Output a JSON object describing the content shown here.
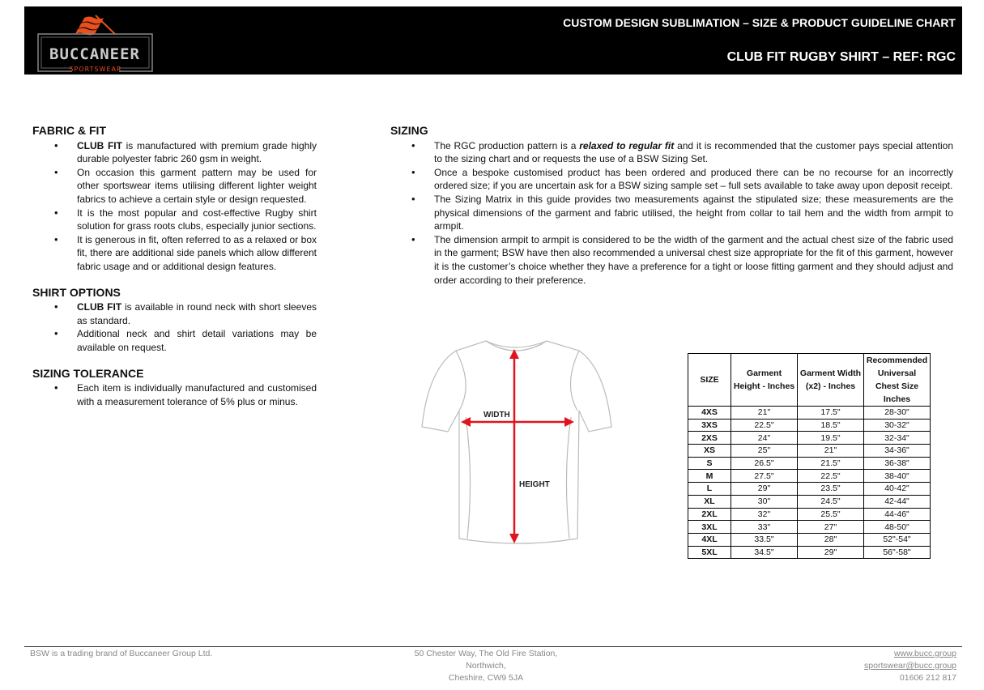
{
  "header": {
    "brand": "BUCCANEER",
    "brand_sub": "SPORTSWEAR",
    "title": "CUSTOM DESIGN SUBLIMATION – SIZE & PRODUCT GUIDELINE CHART",
    "product": "CLUB FIT RUGBY SHIRT – REF: RGC",
    "brand_color": "#e8501e"
  },
  "left": {
    "fabric": {
      "heading": "FABRIC & FIT",
      "items": [
        {
          "bold": "CLUB FIT",
          "text": " is manufactured with premium grade highly durable polyester fabric 260 gsm in weight."
        },
        {
          "bold": "",
          "text": "On occasion this garment pattern may be used for other sportswear items utilising different lighter weight fabrics to achieve a certain style or design requested."
        },
        {
          "bold": "",
          "text": "It is the most popular and cost-effective Rugby shirt solution for grass roots clubs, especially junior sections."
        },
        {
          "bold": "",
          "text": "It is generous in fit, often referred to as a relaxed or box fit, there are additional side panels which allow different fabric usage and or additional design features."
        }
      ]
    },
    "options": {
      "heading": "SHIRT OPTIONS",
      "items": [
        {
          "bold": "CLUB FIT",
          "text": " is available in round neck with short sleeves as standard."
        },
        {
          "bold": "",
          "text": "Additional neck and shirt detail variations may be available on request."
        }
      ]
    },
    "tolerance": {
      "heading": "SIZING TOLERANCE",
      "items": [
        {
          "bold": "",
          "text": "Each item is individually manufactured and customised with a measurement tolerance of 5% plus or minus."
        }
      ]
    }
  },
  "sizing": {
    "heading": "SIZING",
    "items": [
      {
        "pre": "The RGC production pattern is a ",
        "em": "relaxed to regular fit",
        "post": " and it is recommended that the customer pays special attention to the sizing chart and or requests the use of a BSW Sizing Set."
      },
      {
        "pre": "Once a bespoke customised product has been ordered and produced there can be no recourse for an incorrectly ordered size; if you are uncertain ask for a BSW sizing sample set – full sets available to take away upon deposit receipt.",
        "em": "",
        "post": ""
      },
      {
        "pre": "The Sizing Matrix in this guide provides two measurements against the stipulated size; these measurements are the physical dimensions of the garment and fabric utilised, the height from collar to tail hem and the width from armpit to armpit.",
        "em": "",
        "post": ""
      },
      {
        "pre": "The dimension armpit to armpit is considered to be the width of the garment and the actual chest size of the fabric used in the garment; BSW have then also recommended a universal chest size appropriate for the fit of this garment, however it is the customer’s choice whether they have a preference for a tight or loose fitting garment and they should adjust and order according to their preference.",
        "em": "",
        "post": ""
      }
    ]
  },
  "diagram": {
    "width_label": "WIDTH",
    "height_label": "HEIGHT",
    "arrow_color": "#e0141e"
  },
  "table": {
    "headers": [
      "SIZE",
      "Garment Height - Inches",
      "Garment Width (x2) - Inches",
      "Recommended Universal Chest Size Inches"
    ],
    "rows": [
      [
        "4XS",
        "21\"",
        "17.5\"",
        "28-30\""
      ],
      [
        "3XS",
        "22.5\"",
        "18.5\"",
        "30-32\""
      ],
      [
        "2XS",
        "24\"",
        "19.5\"",
        "32-34\""
      ],
      [
        "XS",
        "25\"",
        "21\"",
        "34-36\""
      ],
      [
        "S",
        "26.5\"",
        "21.5\"",
        "36-38\""
      ],
      [
        "M",
        "27.5\"",
        "22.5\"",
        "38-40\""
      ],
      [
        "L",
        "29\"",
        "23.5\"",
        "40-42\""
      ],
      [
        "XL",
        "30\"",
        "24.5\"",
        "42-44\""
      ],
      [
        "2XL",
        "32\"",
        "25.5\"",
        "44-46\""
      ],
      [
        "3XL",
        "33\"",
        "27\"",
        "48-50\""
      ],
      [
        "4XL",
        "33.5\"",
        "28\"",
        "52\"-54\""
      ],
      [
        "5XL",
        "34.5\"",
        "29\"",
        "56\"-58\""
      ]
    ]
  },
  "footer": {
    "left": "BSW is a trading brand of Buccaneer Group Ltd.",
    "address": [
      "50 Chester Way, The Old Fire Station,",
      "Northwich,",
      "Cheshire, CW9 5JA"
    ],
    "web": "www.bucc.group",
    "email": "sportswear@bucc.group",
    "phone": "01606 212 817"
  }
}
